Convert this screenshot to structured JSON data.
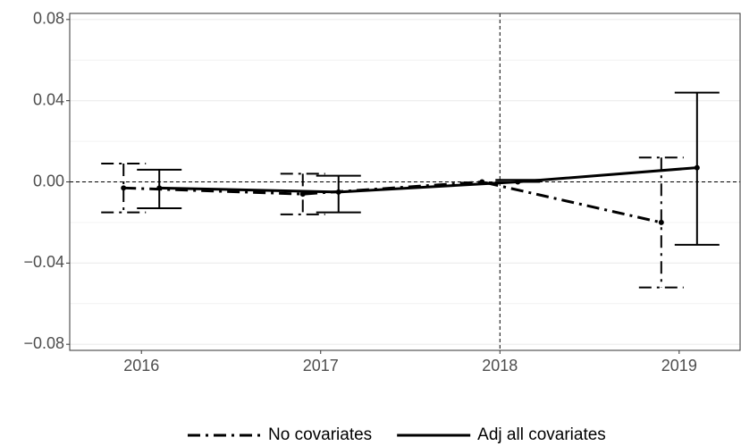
{
  "chart_data": {
    "type": "errorbar-line",
    "x": [
      2016,
      2017,
      2018,
      2019
    ],
    "xlim": [
      2015.6,
      2019.34
    ],
    "xticks": [
      2016,
      2017,
      2018,
      2019
    ],
    "ylim": [
      -0.083,
      0.083
    ],
    "yticks": [
      {
        "value": -0.08,
        "label": "−0.08"
      },
      {
        "value": -0.04,
        "label": "−0.04"
      },
      {
        "value": 0,
        "label": "0.00"
      },
      0.04,
      0.08
    ],
    "y_minor_grid": [
      -0.06,
      -0.02,
      0.02,
      0.06
    ],
    "grid": true,
    "hline": 0,
    "vline": 2018,
    "legend": "bottom",
    "series": [
      {
        "name": "No covariates",
        "color": "#000000",
        "dash": "dashdot",
        "values": [
          -0.003,
          -0.006,
          0,
          -0.02
        ],
        "lower": [
          -0.015,
          -0.016,
          null,
          -0.052
        ],
        "upper": [
          0.009,
          0.004,
          null,
          0.012
        ]
      },
      {
        "name": "Adj all covariates",
        "color": "#000000",
        "dash": "solid",
        "values": [
          -0.003,
          -0.005,
          0,
          0.007
        ],
        "lower": [
          -0.013,
          -0.015,
          0,
          -0.031
        ],
        "upper": [
          0.006,
          0.003,
          0.001,
          0.044
        ]
      }
    ]
  }
}
